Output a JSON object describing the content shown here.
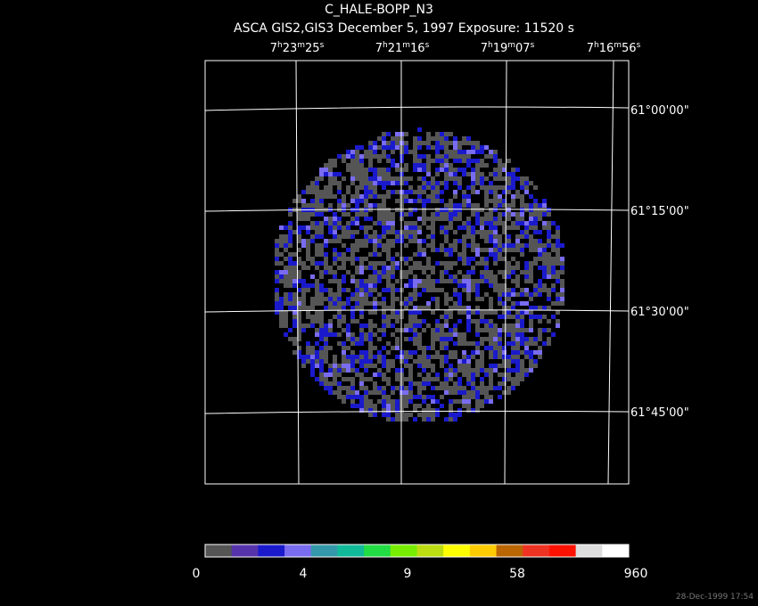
{
  "header": {
    "title": "C_HALE-BOPP_N3",
    "subtitle": "ASCA GIS2,GIS3 December 5, 1997 Exposure: 11520 s"
  },
  "ra_labels": [
    [
      "7",
      "h",
      "23",
      "m",
      "25",
      "s"
    ],
    [
      "7",
      "h",
      "21",
      "m",
      "16",
      "s"
    ],
    [
      "7",
      "h",
      "19",
      "m",
      "07",
      "s"
    ],
    [
      "7",
      "h",
      "16",
      "m",
      "56",
      "s"
    ]
  ],
  "dec_labels": [
    "61°00'00\"",
    "61°15'00\"",
    "61°30'00\"",
    "61°45'00\""
  ],
  "colorbar": {
    "colors": [
      "#555555",
      "#5533aa",
      "#1a1acc",
      "#7a6cf0",
      "#3399aa",
      "#11bb99",
      "#22dd44",
      "#77ee00",
      "#bbdd11",
      "#ffff00",
      "#ffcc00",
      "#bb6600",
      "#ee3322",
      "#ff1100",
      "#dddddd",
      "#ffffff"
    ],
    "labels": [
      "0",
      "4",
      "9",
      "58",
      "960"
    ]
  },
  "footer": "28-Dec-1999 17:54"
}
